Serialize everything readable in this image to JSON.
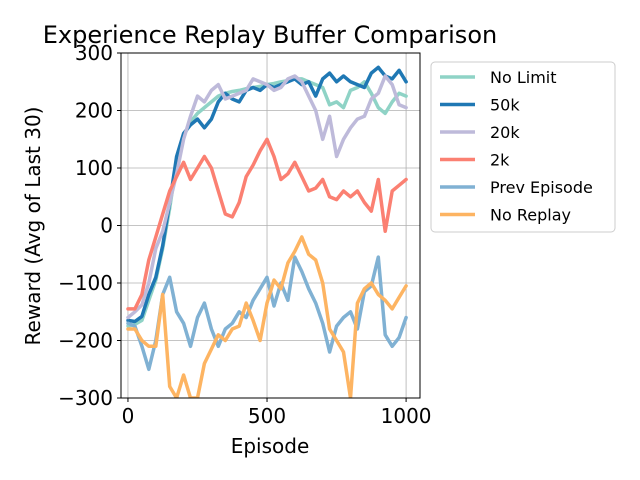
{
  "chart_data": {
    "type": "line",
    "title": "Experience Replay Buffer Comparison",
    "xlabel": "Episode",
    "ylabel": "Reward (Avg of Last 30)",
    "xlim": [
      -25,
      1050
    ],
    "ylim": [
      -300,
      300
    ],
    "xticks": [
      0,
      500,
      1000
    ],
    "xtick_labels": [
      "0",
      "500",
      "1000"
    ],
    "yticks": [
      -300,
      -200,
      -100,
      0,
      100,
      200,
      300
    ],
    "ytick_labels": [
      "−300",
      "−200",
      "−100",
      "0",
      "100",
      "200",
      "300"
    ],
    "grid": true,
    "legend_position": "outside-right",
    "x": [
      0,
      25,
      50,
      75,
      100,
      125,
      150,
      175,
      200,
      225,
      250,
      275,
      300,
      325,
      350,
      375,
      400,
      425,
      450,
      475,
      500,
      525,
      550,
      575,
      600,
      625,
      650,
      675,
      700,
      725,
      750,
      775,
      800,
      825,
      850,
      875,
      900,
      925,
      950,
      975,
      1000
    ],
    "series": [
      {
        "name": "No Limit",
        "color": "#8fd3c6",
        "values": [
          -175,
          -172,
          -165,
          -130,
          -95,
          -40,
          30,
          110,
          155,
          180,
          195,
          205,
          215,
          225,
          230,
          233,
          235,
          238,
          240,
          242,
          245,
          247,
          250,
          252,
          255,
          255,
          250,
          245,
          240,
          210,
          215,
          205,
          235,
          240,
          250,
          230,
          205,
          195,
          215,
          230,
          225
        ]
      },
      {
        "name": "50k",
        "color": "#1f78b4",
        "values": [
          -165,
          -167,
          -158,
          -120,
          -90,
          -35,
          40,
          120,
          160,
          175,
          185,
          170,
          185,
          215,
          230,
          220,
          215,
          235,
          240,
          235,
          245,
          240,
          245,
          250,
          255,
          245,
          250,
          225,
          255,
          265,
          250,
          260,
          250,
          245,
          240,
          265,
          275,
          260,
          255,
          270,
          250
        ]
      },
      {
        "name": "20k",
        "color": "#bebada",
        "values": [
          -160,
          -150,
          -138,
          -100,
          -40,
          -10,
          40,
          90,
          150,
          190,
          225,
          215,
          235,
          245,
          220,
          225,
          230,
          235,
          255,
          250,
          245,
          235,
          240,
          255,
          260,
          250,
          225,
          200,
          150,
          190,
          120,
          150,
          170,
          185,
          190,
          220,
          230,
          260,
          245,
          210,
          205
        ]
      },
      {
        "name": "2k",
        "color": "#fb8072",
        "values": [
          -145,
          -145,
          -120,
          -60,
          -20,
          20,
          60,
          85,
          110,
          80,
          100,
          120,
          100,
          60,
          20,
          15,
          40,
          85,
          105,
          130,
          150,
          120,
          80,
          90,
          110,
          85,
          60,
          65,
          80,
          50,
          45,
          60,
          50,
          60,
          40,
          25,
          80,
          -10,
          60,
          70,
          80
        ]
      },
      {
        "name": "Prev Episode",
        "color": "#80b1d3",
        "values": [
          -170,
          -175,
          -210,
          -250,
          -200,
          -120,
          -90,
          -150,
          -170,
          -210,
          -160,
          -135,
          -180,
          -210,
          -180,
          -170,
          -150,
          -160,
          -130,
          -110,
          -90,
          -140,
          -100,
          -130,
          -55,
          -80,
          -110,
          -135,
          -170,
          -220,
          -175,
          -160,
          -150,
          -180,
          -115,
          -105,
          -55,
          -190,
          -210,
          -195,
          -160
        ]
      },
      {
        "name": "No Replay",
        "color": "#fdb462",
        "values": [
          -180,
          -180,
          -200,
          -210,
          -210,
          -120,
          -280,
          -300,
          -260,
          -300,
          -300,
          -240,
          -215,
          -190,
          -200,
          -180,
          -175,
          -135,
          -165,
          -200,
          -135,
          -95,
          -110,
          -65,
          -45,
          -20,
          -50,
          -60,
          -100,
          -180,
          -200,
          -220,
          -300,
          -135,
          -110,
          -100,
          -120,
          -130,
          -145,
          -125,
          -105
        ]
      }
    ]
  }
}
